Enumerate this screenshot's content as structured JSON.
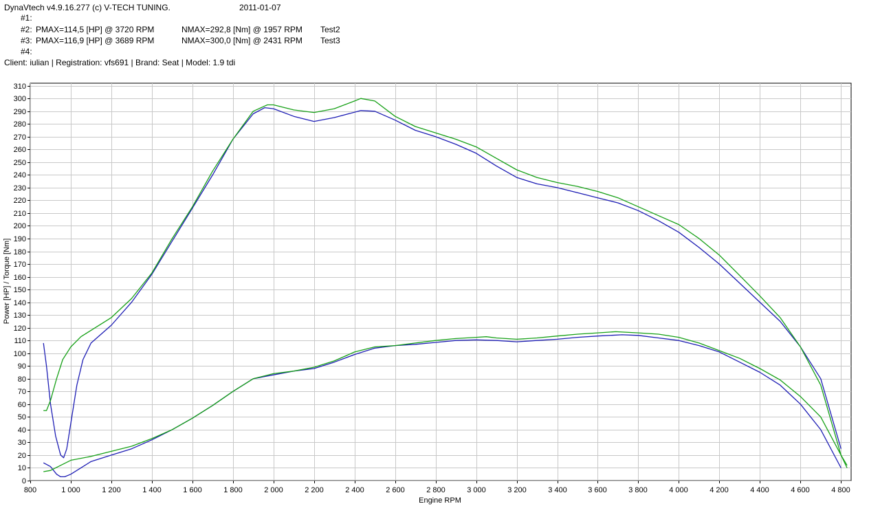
{
  "header": {
    "app_title": "DynaVtech v4.9.16.277 (c) V-TECH TUNING.",
    "date": "2011-01-07",
    "runs": [
      {
        "id": "#1:",
        "pmax": "",
        "nmax": "",
        "name": ""
      },
      {
        "id": "#2:",
        "pmax": "PMAX=114,5 [HP] @ 3720 RPM",
        "nmax": "NMAX=292,8 [Nm] @ 1957 RPM",
        "name": "Test2"
      },
      {
        "id": "#3:",
        "pmax": "PMAX=116,9 [HP] @ 3689 RPM",
        "nmax": "NMAX=300,0 [Nm] @ 2431 RPM",
        "name": "Test3"
      },
      {
        "id": "#4:",
        "pmax": "",
        "nmax": "",
        "name": ""
      }
    ],
    "client_line": "Client: iulian | Registration: vfs691 | Brand: Seat | Model: 1.9 tdi"
  },
  "chart_data": {
    "type": "line",
    "xlabel": "Engine RPM",
    "ylabel": "Power [HP] / Torque [Nm]",
    "xlim": [
      800,
      4850
    ],
    "ylim": [
      0,
      312
    ],
    "x_ticks": [
      800,
      1000,
      1200,
      1400,
      1600,
      1800,
      2000,
      2200,
      2400,
      2600,
      2800,
      3000,
      3200,
      3400,
      3600,
      3800,
      4000,
      4200,
      4400,
      4600,
      4800
    ],
    "x_tick_labels": [
      "800",
      "1 000",
      "1 200",
      "1 400",
      "1 600",
      "1 800",
      "2 000",
      "2 200",
      "2 400",
      "2 600",
      "2 800",
      "3 000",
      "3 200",
      "3 400",
      "3 600",
      "3 800",
      "4 000",
      "4 200",
      "4 400",
      "4 600",
      "4 800"
    ],
    "y_ticks": [
      0,
      10,
      20,
      30,
      40,
      50,
      60,
      70,
      80,
      90,
      100,
      110,
      120,
      130,
      140,
      150,
      160,
      170,
      180,
      190,
      200,
      210,
      220,
      230,
      240,
      250,
      260,
      270,
      280,
      290,
      300,
      310
    ],
    "grid": true,
    "background": "#ffffff",
    "grid_color": "#c8c8c8",
    "series": [
      {
        "name": "Test2",
        "quantity": "torque",
        "color": "#1c1cb4",
        "x": [
          865,
          880,
          900,
          925,
          950,
          965,
          980,
          1000,
          1030,
          1060,
          1100,
          1200,
          1300,
          1400,
          1500,
          1600,
          1700,
          1800,
          1900,
          1957,
          2000,
          2100,
          2200,
          2300,
          2431,
          2500,
          2600,
          2700,
          2800,
          2900,
          3000,
          3100,
          3200,
          3300,
          3400,
          3500,
          3600,
          3700,
          3800,
          3900,
          4000,
          4100,
          4200,
          4300,
          4400,
          4500,
          4600,
          4700,
          4800
        ],
        "y": [
          108,
          90,
          60,
          35,
          20,
          18,
          25,
          45,
          75,
          95,
          108,
          122,
          140,
          162,
          188,
          214,
          240,
          268,
          288,
          292.8,
          292,
          286,
          282,
          285,
          290.5,
          290,
          283,
          275,
          270,
          264,
          257,
          247,
          238,
          233,
          230,
          226,
          222,
          218,
          212,
          204,
          195,
          183,
          170,
          155,
          140,
          125,
          105,
          80,
          25
        ]
      },
      {
        "name": "Test3",
        "quantity": "torque",
        "color": "#16a016",
        "x": [
          865,
          880,
          900,
          930,
          960,
          1000,
          1050,
          1100,
          1200,
          1300,
          1400,
          1500,
          1600,
          1700,
          1800,
          1900,
          1970,
          2000,
          2100,
          2200,
          2300,
          2400,
          2431,
          2500,
          2600,
          2700,
          2800,
          2900,
          3000,
          3100,
          3200,
          3300,
          3400,
          3500,
          3600,
          3700,
          3800,
          3900,
          4000,
          4100,
          4200,
          4300,
          4400,
          4500,
          4600,
          4700,
          4800,
          4830
        ],
        "y": [
          55,
          55,
          63,
          80,
          95,
          105,
          113,
          118,
          128,
          143,
          163,
          190,
          215,
          243,
          268,
          290,
          295,
          295,
          291,
          289,
          292,
          298,
          300,
          298,
          286,
          278,
          273,
          268,
          262,
          253,
          244,
          238,
          234,
          231,
          227,
          222,
          215,
          208,
          201,
          190,
          177,
          161,
          145,
          128,
          105,
          75,
          20,
          10
        ]
      },
      {
        "name": "Test2",
        "quantity": "power",
        "color": "#1c1cb4",
        "x": [
          865,
          900,
          930,
          950,
          970,
          1000,
          1100,
          1200,
          1300,
          1400,
          1500,
          1600,
          1700,
          1800,
          1900,
          2000,
          2100,
          2200,
          2300,
          2400,
          2500,
          2600,
          2700,
          2800,
          2900,
          3000,
          3100,
          3200,
          3300,
          3400,
          3500,
          3600,
          3720,
          3800,
          3900,
          4000,
          4100,
          4200,
          4300,
          4400,
          4500,
          4600,
          4700,
          4800
        ],
        "y": [
          14,
          11,
          5,
          3,
          3,
          5,
          15,
          20,
          25,
          32,
          40,
          49,
          59,
          70,
          80,
          83,
          86,
          88,
          93,
          99,
          104,
          106,
          107,
          108.5,
          110,
          110.5,
          110,
          109,
          110,
          111,
          112.5,
          113.5,
          114.5,
          114,
          112,
          110,
          106,
          101,
          93,
          85,
          75,
          60,
          40,
          10
        ]
      },
      {
        "name": "Test3",
        "quantity": "power",
        "color": "#16a016",
        "x": [
          865,
          900,
          950,
          1000,
          1100,
          1200,
          1300,
          1400,
          1500,
          1600,
          1700,
          1800,
          1900,
          2000,
          2100,
          2200,
          2300,
          2400,
          2500,
          2600,
          2700,
          2800,
          2900,
          3000,
          3050,
          3100,
          3200,
          3300,
          3400,
          3500,
          3600,
          3689,
          3800,
          3900,
          4000,
          4100,
          4200,
          4300,
          4400,
          4500,
          4600,
          4700,
          4800,
          4830
        ],
        "y": [
          7,
          8,
          12,
          16,
          19,
          23,
          27,
          33,
          40,
          49,
          59,
          70,
          80,
          84,
          86,
          89,
          94,
          101,
          105,
          106,
          108,
          110,
          111.5,
          112.5,
          113,
          112,
          111,
          112,
          113.5,
          115,
          116,
          116.9,
          116,
          115,
          112.5,
          108,
          102,
          96,
          88,
          79,
          66,
          50,
          20,
          12
        ]
      }
    ]
  }
}
